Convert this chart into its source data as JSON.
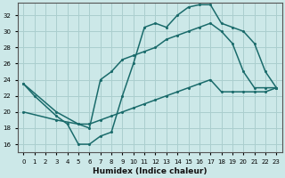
{
  "xlabel": "Humidex (Indice chaleur)",
  "bg_color": "#cce8e8",
  "grid_color": "#aacece",
  "line_color": "#1a6b6b",
  "xlim": [
    -0.5,
    23.5
  ],
  "ylim": [
    15.0,
    33.5
  ],
  "xticks": [
    0,
    1,
    2,
    3,
    4,
    5,
    6,
    7,
    8,
    9,
    10,
    11,
    12,
    13,
    14,
    15,
    16,
    17,
    18,
    19,
    20,
    21,
    22,
    23
  ],
  "yticks": [
    16,
    18,
    20,
    22,
    24,
    26,
    28,
    30,
    32
  ],
  "line1_x": [
    0,
    1,
    3,
    4,
    5,
    6,
    7,
    8,
    9,
    10,
    11,
    12,
    13,
    14,
    15,
    16,
    17,
    18,
    19,
    20,
    21,
    22,
    23
  ],
  "line1_y": [
    23.5,
    22.0,
    19.5,
    18.5,
    16.0,
    16.0,
    17.0,
    17.5,
    22.0,
    26.0,
    30.5,
    31.0,
    30.5,
    32.0,
    33.0,
    33.3,
    33.3,
    31.0,
    30.5,
    30.0,
    28.5,
    25.0,
    23.0
  ],
  "line2_x": [
    0,
    3,
    5,
    6,
    7,
    8,
    9,
    10,
    11,
    12,
    13,
    14,
    15,
    16,
    17,
    18,
    19,
    20,
    21,
    22,
    23
  ],
  "line2_y": [
    23.5,
    20.0,
    18.5,
    18.0,
    24.0,
    25.0,
    26.5,
    27.0,
    27.5,
    28.0,
    29.0,
    29.5,
    30.0,
    30.5,
    31.0,
    30.0,
    28.5,
    25.0,
    23.0,
    23.0,
    23.0
  ],
  "line3_x": [
    0,
    3,
    5,
    6,
    7,
    8,
    9,
    10,
    11,
    12,
    13,
    14,
    15,
    16,
    17,
    18,
    19,
    20,
    21,
    22,
    23
  ],
  "line3_y": [
    20.0,
    19.0,
    18.5,
    18.5,
    19.0,
    19.5,
    20.0,
    20.5,
    21.0,
    21.5,
    22.0,
    22.5,
    23.0,
    23.5,
    24.0,
    22.5,
    22.5,
    22.5,
    22.5,
    22.5,
    23.0
  ]
}
